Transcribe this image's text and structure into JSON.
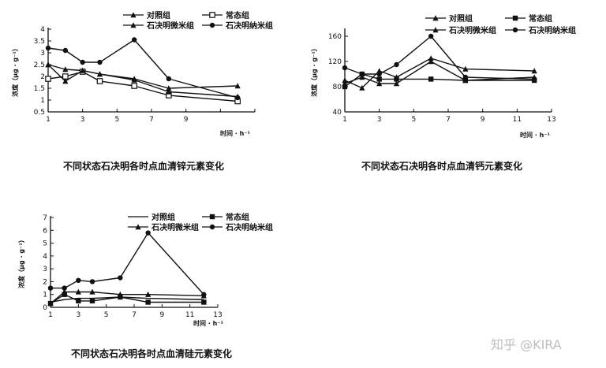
{
  "watermark": "知乎 @KIRA",
  "chart_data": [
    {
      "type": "line",
      "title": "不同状态石决明各时点血清锌元素变化",
      "xlabel": "时间 · h⁻¹",
      "ylabel": "浓度（μg · g⁻¹）",
      "xlim": [
        1,
        13
      ],
      "ylim": [
        0.5,
        4
      ],
      "xticks": [
        1,
        3,
        5,
        7,
        9,
        11,
        13
      ],
      "xtick_labels": [
        "1",
        "3",
        "5",
        "7",
        "9",
        "",
        ""
      ],
      "yticks": [
        0.5,
        1,
        1.5,
        2,
        2.5,
        3,
        3.5,
        4
      ],
      "ytick_labels": [
        "0.5",
        "1",
        "1.5",
        "2",
        "2.5",
        "3",
        "3.5",
        "4"
      ],
      "grid": false,
      "legend_position": "top-right",
      "series": [
        {
          "name": "对照组",
          "marker": "triangle",
          "x": [
            1,
            2,
            3,
            4,
            6,
            8,
            12
          ],
          "y": [
            2.5,
            2.3,
            2.25,
            2.1,
            1.9,
            1.5,
            1.6
          ]
        },
        {
          "name": "常态组",
          "marker": "square-open",
          "x": [
            1,
            2,
            3,
            4,
            6,
            8,
            12
          ],
          "y": [
            1.9,
            2.0,
            2.2,
            1.8,
            1.6,
            1.2,
            0.95
          ]
        },
        {
          "name": "石决明微米组",
          "marker": "triangle",
          "x": [
            1,
            2,
            3,
            4,
            6,
            8,
            12
          ],
          "y": [
            2.5,
            1.8,
            2.25,
            2.1,
            1.85,
            1.35,
            1.15
          ]
        },
        {
          "name": "石决明纳米组",
          "marker": "circle",
          "x": [
            1,
            2,
            3,
            4,
            6,
            8,
            12
          ],
          "y": [
            3.2,
            3.1,
            2.6,
            2.6,
            3.55,
            1.9,
            1.1
          ]
        }
      ]
    },
    {
      "type": "line",
      "title": "不同状态石决明各时点血清钙元素变化",
      "xlabel": "时间 · h⁻¹",
      "ylabel": "浓度（μg · g⁻¹）",
      "xlim": [
        1,
        13
      ],
      "ylim": [
        40,
        170
      ],
      "xticks": [
        1,
        3,
        5,
        7,
        9,
        11,
        13
      ],
      "xtick_labels": [
        "1",
        "3",
        "5",
        "7",
        "9",
        "11",
        "13"
      ],
      "yticks": [
        40,
        80,
        120,
        160
      ],
      "ytick_labels": [
        "40",
        "80",
        "120",
        "160"
      ],
      "grid": false,
      "legend_position": "top-right",
      "series": [
        {
          "name": "对照组",
          "marker": "triangle",
          "x": [
            1,
            2,
            3,
            4,
            6,
            8,
            12
          ],
          "y": [
            90,
            78,
            105,
            95,
            125,
            108,
            105
          ]
        },
        {
          "name": "常态组",
          "marker": "square",
          "x": [
            1,
            2,
            3,
            4,
            6,
            8,
            12
          ],
          "y": [
            80,
            100,
            92,
            92,
            92,
            90,
            90
          ]
        },
        {
          "name": "石决明微米组",
          "marker": "triangle",
          "x": [
            1,
            2,
            3,
            4,
            6,
            8,
            12
          ],
          "y": [
            85,
            95,
            85,
            85,
            120,
            90,
            95
          ]
        },
        {
          "name": "石决明纳米组",
          "marker": "circle",
          "x": [
            1,
            2,
            3,
            4,
            6,
            8,
            12
          ],
          "y": [
            110,
            100,
            100,
            115,
            160,
            95,
            92
          ]
        }
      ]
    },
    {
      "type": "line",
      "title": "不同状态石决明各时点血清硅元素变化",
      "xlabel": "时间 · h⁻¹",
      "ylabel": "浓度（μg · g⁻¹）",
      "xlim": [
        1,
        13
      ],
      "ylim": [
        0,
        7
      ],
      "xticks": [
        1,
        3,
        5,
        7,
        9,
        11,
        13
      ],
      "xtick_labels": [
        "1",
        "3",
        "5",
        "7",
        "9",
        "11",
        "13"
      ],
      "yticks": [
        0,
        1,
        2,
        3,
        4,
        5,
        6,
        7
      ],
      "ytick_labels": [
        "0",
        "1",
        "2",
        "3",
        "4",
        "5",
        "6",
        "7"
      ],
      "grid": false,
      "legend_position": "top-right",
      "series": [
        {
          "name": "对照组",
          "marker": "none",
          "x": [
            1,
            2,
            3,
            4,
            6,
            8,
            12
          ],
          "y": [
            0.4,
            0.6,
            0.7,
            0.7,
            0.8,
            0.7,
            0.6
          ]
        },
        {
          "name": "常态组",
          "marker": "square",
          "x": [
            1,
            2,
            3,
            4,
            6,
            8,
            12
          ],
          "y": [
            0.3,
            1.0,
            0.5,
            0.5,
            0.8,
            0.4,
            0.4
          ]
        },
        {
          "name": "石决明微米组",
          "marker": "triangle",
          "x": [
            1,
            2,
            3,
            4,
            6,
            8,
            12
          ],
          "y": [
            0.3,
            1.2,
            1.2,
            1.2,
            1.0,
            1.0,
            0.9
          ]
        },
        {
          "name": "石决明纳米组",
          "marker": "circle",
          "x": [
            1,
            2,
            3,
            4,
            6,
            8,
            12
          ],
          "y": [
            1.5,
            1.5,
            2.1,
            2.0,
            2.3,
            5.8,
            1.0
          ]
        }
      ]
    }
  ]
}
